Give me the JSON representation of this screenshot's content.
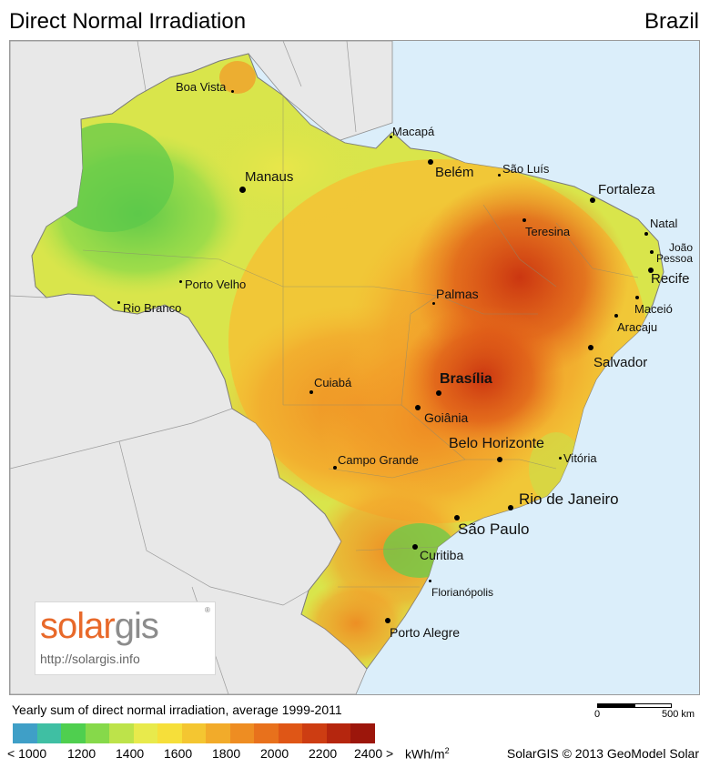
{
  "header": {
    "title": "Direct Normal Irradiation",
    "country": "Brazil"
  },
  "cities": [
    {
      "name": "Boa Vista"
    },
    {
      "name": "Macapá"
    },
    {
      "name": "Manaus"
    },
    {
      "name": "Belém"
    },
    {
      "name": "São Luís"
    },
    {
      "name": "Fortaleza"
    },
    {
      "name": "Teresina"
    },
    {
      "name": "Natal"
    },
    {
      "name": "João Pessoa"
    },
    {
      "name": "Recife"
    },
    {
      "name": "Maceió"
    },
    {
      "name": "Aracaju"
    },
    {
      "name": "Porto Velho"
    },
    {
      "name": "Rio Branco"
    },
    {
      "name": "Palmas"
    },
    {
      "name": "Salvador"
    },
    {
      "name": "Cuiabá"
    },
    {
      "name": "Brasília"
    },
    {
      "name": "Goiânia"
    },
    {
      "name": "Belo Horizonte"
    },
    {
      "name": "Vitória"
    },
    {
      "name": "Campo Grande"
    },
    {
      "name": "Rio de Janeiro"
    },
    {
      "name": "São Paulo"
    },
    {
      "name": "Curitiba"
    },
    {
      "name": "Florianópolis"
    },
    {
      "name": "Porto Alegre"
    }
  ],
  "logo": {
    "brand_a": "solar",
    "brand_b": "gis",
    "reg": "®",
    "url": "http://solargis.info"
  },
  "legend": {
    "title": "Yearly sum of direct normal irradiation, average 1999-2011",
    "colors": [
      "#3f9fc7",
      "#3fbfa3",
      "#4fcf4f",
      "#86d94a",
      "#bde34a",
      "#e8ea4c",
      "#f6df3a",
      "#f4c631",
      "#f2ab2a",
      "#ee8d22",
      "#e8711c",
      "#df5616",
      "#cd3d12",
      "#b5260e",
      "#9c160b"
    ],
    "labels": [
      "< 1000",
      "1200",
      "1400",
      "1600",
      "1800",
      "2000",
      "2200",
      "2400 >",
      "kWh/m"
    ],
    "unit_sup": "2"
  },
  "scale": {
    "zero": "0",
    "end": "500 km"
  },
  "credit": "SolarGIS © 2013 GeoModel Solar"
}
